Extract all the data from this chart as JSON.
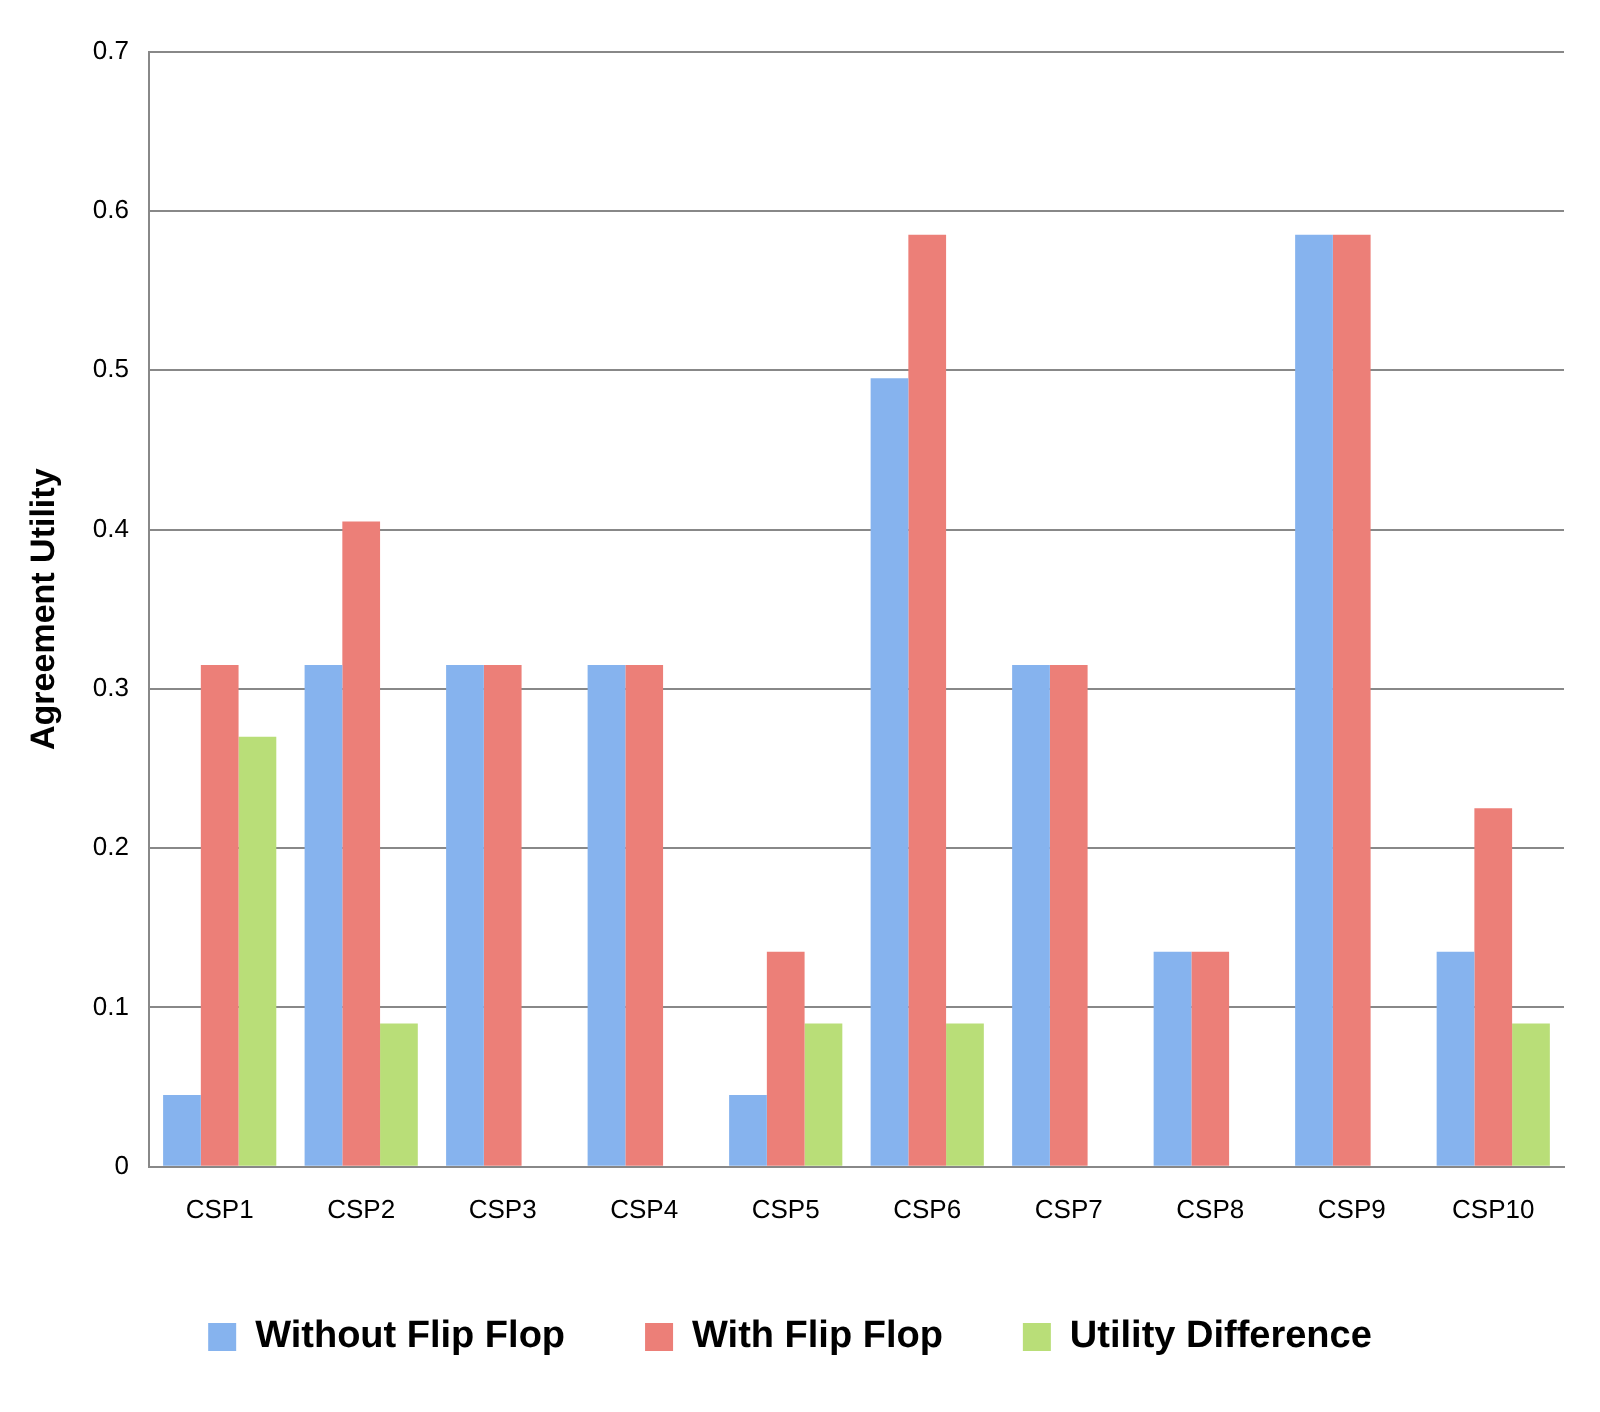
{
  "chart_data": {
    "type": "bar",
    "ylabel": "Agreement Utility",
    "categories": [
      "CSP1",
      "CSP2",
      "CSP3",
      "CSP4",
      "CSP5",
      "CSP6",
      "CSP7",
      "CSP8",
      "CSP9",
      "CSP10"
    ],
    "series": [
      {
        "name": "Without Flip Flop",
        "color": "#86b3ee",
        "values": [
          0.045,
          0.315,
          0.315,
          0.315,
          0.045,
          0.495,
          0.315,
          0.135,
          0.585,
          0.135
        ]
      },
      {
        "name": "With Flip Flop",
        "color": "#ec7f78",
        "values": [
          0.315,
          0.405,
          0.315,
          0.315,
          0.135,
          0.585,
          0.315,
          0.135,
          0.585,
          0.225
        ]
      },
      {
        "name": "Utility Difference",
        "color": "#b9de78",
        "values": [
          0.27,
          0.09,
          0,
          0,
          0.09,
          0.09,
          0,
          0,
          0,
          0.09
        ]
      }
    ],
    "ylim": [
      0,
      0.7
    ],
    "yticks": [
      0,
      0.1,
      0.2,
      0.3,
      0.4,
      0.5,
      0.6,
      0.7
    ],
    "grid": "y",
    "legend": "bottom"
  }
}
